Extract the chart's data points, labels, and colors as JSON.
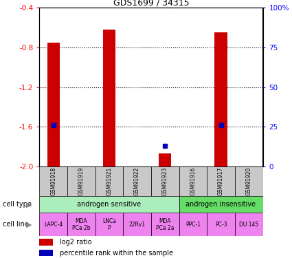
{
  "title": "GDS1699 / 34315",
  "samples": [
    "GSM91918",
    "GSM91919",
    "GSM91921",
    "GSM91922",
    "GSM91923",
    "GSM91916",
    "GSM91917",
    "GSM91920"
  ],
  "log2_ratio": [
    -0.75,
    -2.0,
    -0.62,
    -2.0,
    -1.87,
    -2.0,
    -0.65,
    -2.0
  ],
  "percentile_rank": [
    26,
    0,
    0,
    0,
    13,
    0,
    26,
    0
  ],
  "ylim": [
    -2.0,
    -0.4
  ],
  "y_ticks": [
    -2.0,
    -1.6,
    -1.2,
    -0.8,
    -0.4
  ],
  "y2_ticks": [
    0,
    25,
    50,
    75,
    100
  ],
  "y2_tick_labels": [
    "0",
    "25",
    "50",
    "75",
    "100%"
  ],
  "cell_type_groups": [
    {
      "label": "androgen sensitive",
      "start": 0,
      "end": 5,
      "color": "#AAEEBB"
    },
    {
      "label": "androgen insensitive",
      "start": 5,
      "end": 8,
      "color": "#66DD66"
    }
  ],
  "cell_lines": [
    "LAPC-4",
    "MDA\nPCa 2b",
    "LNCa\nP",
    "22Rv1",
    "MDA\nPCa 2a",
    "PPC-1",
    "PC-3",
    "DU 145"
  ],
  "cell_line_color": "#EE82EE",
  "sample_box_color": "#C8C8C8",
  "bar_color": "#CC0000",
  "dot_color": "#0000BB",
  "legend_items": [
    {
      "label": "log2 ratio",
      "color": "#CC0000"
    },
    {
      "label": "percentile rank within the sample",
      "color": "#0000BB"
    }
  ]
}
